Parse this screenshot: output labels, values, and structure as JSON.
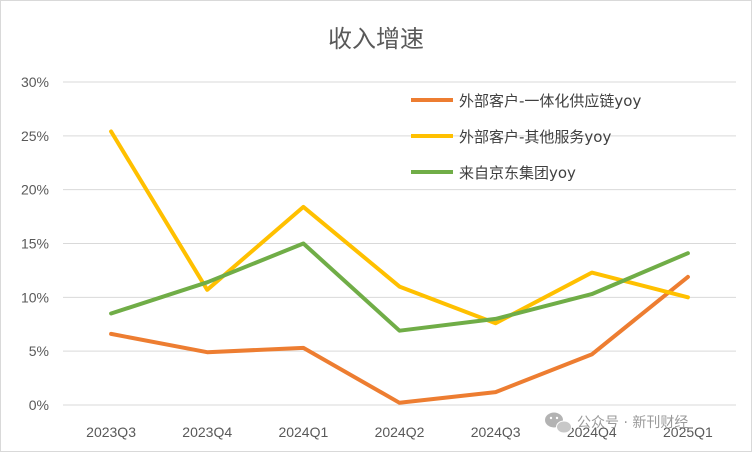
{
  "chart_data": {
    "type": "line",
    "title": "收入增速",
    "categories": [
      "2023Q3",
      "2023Q4",
      "2024Q1",
      "2024Q2",
      "2024Q3",
      "2024Q4",
      "2025Q1"
    ],
    "yticks": [
      "0%",
      "5%",
      "10%",
      "15%",
      "20%",
      "25%",
      "30%"
    ],
    "ylim": [
      0,
      30
    ],
    "grid": true,
    "legend_position": "top-right",
    "series": [
      {
        "name": "外部客户-一体化供应链yoy",
        "color": "#ed7d31",
        "values": [
          6.6,
          4.9,
          5.3,
          0.2,
          1.2,
          4.7,
          11.9
        ]
      },
      {
        "name": "外部客户-其他服务yoy",
        "color": "#ffc000",
        "values": [
          25.4,
          10.7,
          18.4,
          11.0,
          7.6,
          12.3,
          10.0
        ]
      },
      {
        "name": "来自京东集团yoy",
        "color": "#70ad47",
        "values": [
          8.5,
          11.4,
          15.0,
          6.9,
          8.0,
          10.3,
          14.1
        ]
      }
    ]
  },
  "watermark": {
    "text": "公众号 · 新刊财经"
  }
}
